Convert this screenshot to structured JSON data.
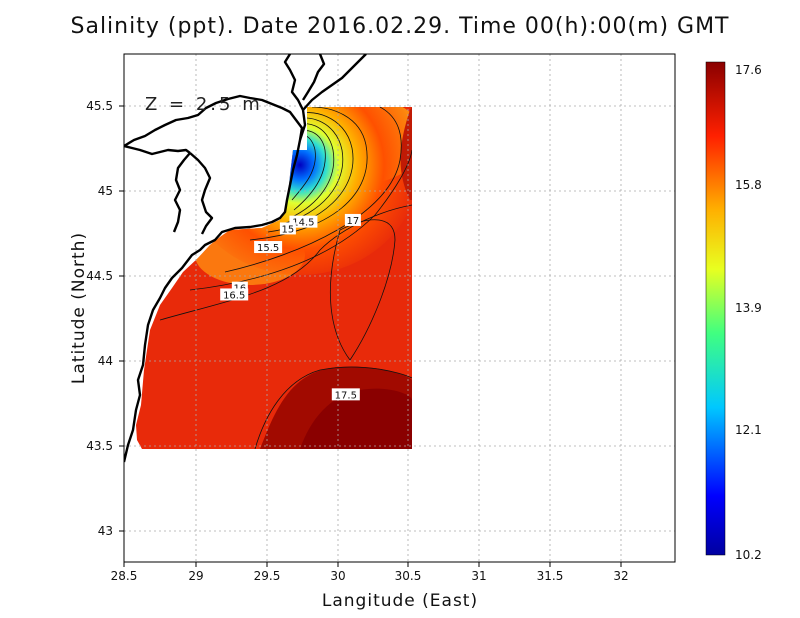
{
  "chart_data": {
    "type": "heatmap",
    "title": "Salinity (ppt). Date 2016.02.29. Time 00(h):00(m) GMT",
    "annotation": "Z = 2.5 m",
    "xlabel": "Langitude (East)",
    "ylabel": "Latitude (North)",
    "xlim": [
      28.5,
      32.4
    ],
    "ylim": [
      42.8,
      45.8
    ],
    "x_ticks": [
      "28.5",
      "29",
      "29.5",
      "30",
      "30.5",
      "31",
      "31.5",
      "32"
    ],
    "y_ticks": [
      "43",
      "43.5",
      "44",
      "44.5",
      "45",
      "45.5"
    ],
    "colorbar": {
      "min": 10.2,
      "max": 17.6,
      "ticks": [
        "10.2",
        "12.1",
        "13.9",
        "15.8",
        "17.6"
      ]
    },
    "contour_labels": [
      {
        "text": "14.5",
        "lon": 29.77,
        "lat": 44.81
      },
      {
        "text": "15",
        "lon": 29.66,
        "lat": 44.77
      },
      {
        "text": "15.5",
        "lon": 29.52,
        "lat": 44.66
      },
      {
        "text": "16",
        "lon": 29.32,
        "lat": 44.42
      },
      {
        "text": "16.5",
        "lon": 29.28,
        "lat": 44.38
      },
      {
        "text": "17",
        "lon": 30.12,
        "lat": 44.82
      },
      {
        "text": "17.5",
        "lon": 30.07,
        "lat": 43.79
      }
    ],
    "grid": true
  }
}
